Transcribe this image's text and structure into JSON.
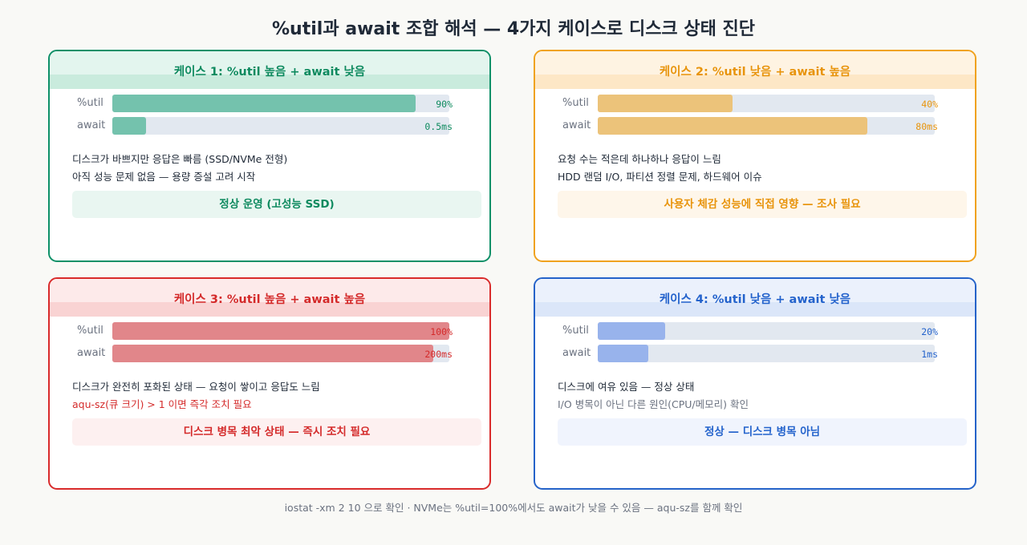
{
  "title": "%util과 await 조합 해석 — 4가지 케이스로 디스크 상태 진단",
  "footer": "iostat -xm 2 10 으로 확인 · NVMe는 %util=100%에서도 await가 낮을 수 있음 — aqu-sz를 함께 확인",
  "cases": [
    {
      "title": "케이스 1: %util 높음 + await 낮음",
      "colors": {
        "border": "#0e9068",
        "text": "#0e8a5f",
        "head": "#e3f5ee",
        "band": "#c9ebdd",
        "fill": "#74c2ad",
        "verdict_bg": "#e9f6f1"
      },
      "metrics": [
        {
          "label": "%util",
          "value_text": "90%",
          "fraction": 0.9
        },
        {
          "label": "await",
          "value_text": "0.5ms",
          "fraction": 0.1
        }
      ],
      "desc": [
        "디스크가 바쁘지만 응답은 빠름 (SSD/NVMe 전형)",
        "아직 성능 문제 없음 — 용량 증설 고려 시작"
      ],
      "desc_colors": [
        "#1f2937",
        "#1f2937"
      ],
      "verdict": "정상 운영 (고성능 SSD)"
    },
    {
      "title": "케이스 2: %util 낮음 + await 높음",
      "colors": {
        "border": "#f0a21e",
        "text": "#e8940c",
        "head": "#fef3e2",
        "band": "#fde7c6",
        "fill": "#ecc37a",
        "verdict_bg": "#fef6ea"
      },
      "metrics": [
        {
          "label": "%util",
          "value_text": "40%",
          "fraction": 0.4
        },
        {
          "label": "await",
          "value_text": "80ms",
          "fraction": 0.8
        }
      ],
      "desc": [
        "요청 수는 적은데 하나하나 응답이 느림",
        "HDD 랜덤 I/O, 파티션 정렬 문제, 하드웨어 이슈"
      ],
      "desc_colors": [
        "#1f2937",
        "#1f2937"
      ],
      "verdict": "사용자 체감 성능에 직접 영향 — 조사 필요"
    },
    {
      "title": "케이스 3: %util 높음 + await 높음",
      "colors": {
        "border": "#d92b2b",
        "text": "#d42a2a",
        "head": "#fdeaea",
        "band": "#f9d3d3",
        "fill": "#e1868a",
        "verdict_bg": "#fdf0f0"
      },
      "metrics": [
        {
          "label": "%util",
          "value_text": "100%",
          "fraction": 1.0
        },
        {
          "label": "await",
          "value_text": "200ms",
          "fraction": 0.952
        }
      ],
      "desc": [
        "디스크가 완전히 포화된 상태 — 요청이 쌓이고 응답도 느림",
        "aqu-sz(큐 크기) > 1 이면 즉각 조치 필요"
      ],
      "desc_colors": [
        "#1f2937",
        "#d42a2a"
      ],
      "verdict": "디스크 병목 최악 상태 — 즉시 조치 필요"
    },
    {
      "title": "케이스 4: %util 낮음 + await 낮음",
      "colors": {
        "border": "#2563c9",
        "text": "#2463cc",
        "head": "#ebf1fc",
        "band": "#dbe6f9",
        "fill": "#98b3ec",
        "verdict_bg": "#f0f4fd"
      },
      "metrics": [
        {
          "label": "%util",
          "value_text": "20%",
          "fraction": 0.2
        },
        {
          "label": "await",
          "value_text": "1ms",
          "fraction": 0.15
        }
      ],
      "desc": [
        "디스크에 여유 있음 — 정상 상태",
        "I/O 병목이 아닌 다른 원인(CPU/메모리) 확인"
      ],
      "desc_colors": [
        "#1f2937",
        "#6b7280"
      ],
      "verdict": "정상 — 디스크 병목 아님"
    }
  ]
}
